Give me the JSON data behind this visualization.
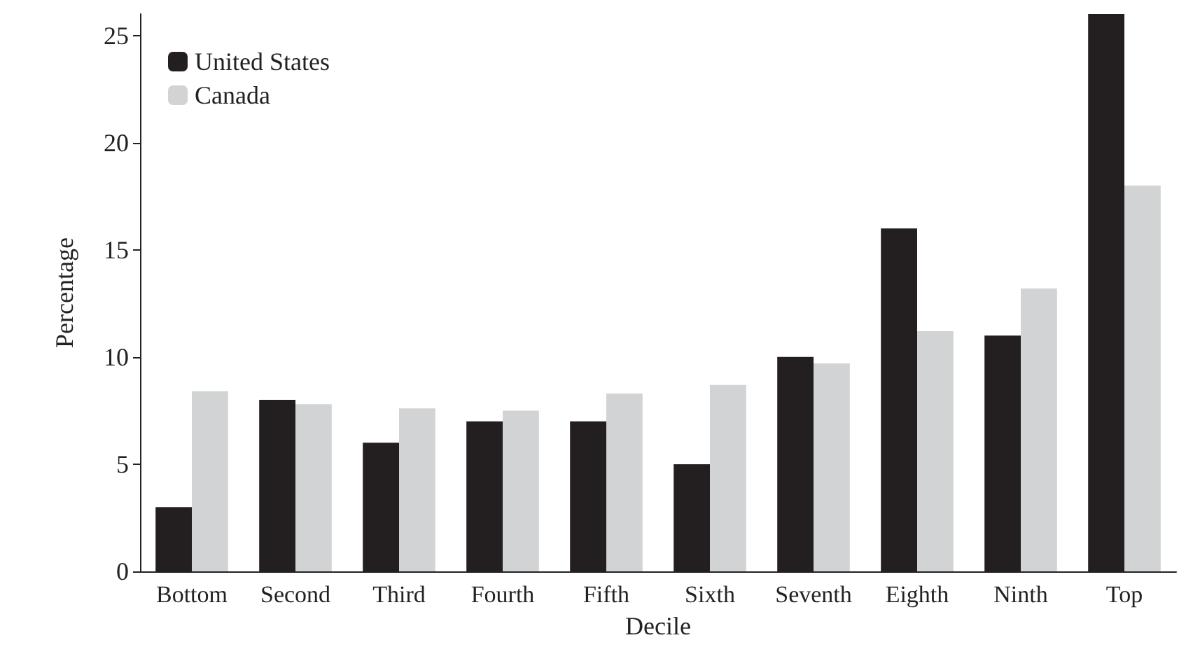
{
  "chart_data": {
    "type": "bar",
    "xlabel": "Decile",
    "ylabel": "Percentage",
    "categories": [
      "Bottom",
      "Second",
      "Third",
      "Fourth",
      "Fifth",
      "Sixth",
      "Seventh",
      "Eighth",
      "Ninth",
      "Top"
    ],
    "series": [
      {
        "name": "United States",
        "color": "#231f20",
        "values": [
          3,
          8,
          6,
          7,
          7,
          5,
          10,
          16,
          11,
          26
        ]
      },
      {
        "name": "Canada",
        "color": "#d1d3d4",
        "values": [
          8.4,
          7.8,
          7.6,
          7.5,
          8.3,
          8.7,
          9.7,
          11.2,
          13.2,
          18
        ]
      }
    ],
    "ylim": [
      0,
      26
    ],
    "yticks": [
      0,
      5,
      10,
      15,
      20,
      25
    ],
    "grid": false,
    "legend": "top left"
  }
}
